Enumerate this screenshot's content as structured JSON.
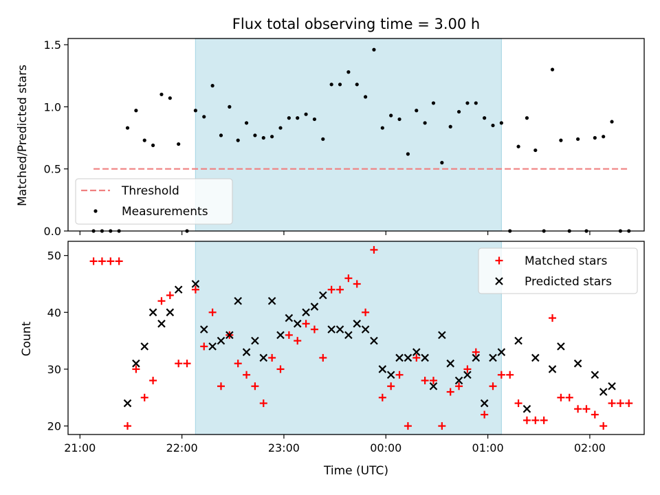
{
  "chart_data": [
    {
      "type": "scatter",
      "title": "Flux total observing time = 3.00 h",
      "ylabel": "Matched/Predicted stars",
      "xlabel": "",
      "ylim": [
        0,
        1.55
      ],
      "yticks": [
        "0.0",
        "0.5",
        "1.0",
        "1.5"
      ],
      "grid": false,
      "legend_position": "lower-left",
      "threshold": {
        "name": "Threshold",
        "value": 0.5,
        "color": "#f08080"
      },
      "series": [
        {
          "name": "Measurements",
          "color": "#000000",
          "points": [
            [
              "21:08",
              0.0
            ],
            [
              "21:13",
              0.0
            ],
            [
              "21:18",
              0.0
            ],
            [
              "21:23",
              0.0
            ],
            [
              "21:28",
              0.83
            ],
            [
              "21:33",
              0.97
            ],
            [
              "21:38",
              0.73
            ],
            [
              "21:43",
              0.69
            ],
            [
              "21:48",
              1.1
            ],
            [
              "21:53",
              1.07
            ],
            [
              "21:58",
              0.7
            ],
            [
              "22:03",
              0.0
            ],
            [
              "22:08",
              0.97
            ],
            [
              "22:13",
              0.92
            ],
            [
              "22:18",
              1.17
            ],
            [
              "22:23",
              0.77
            ],
            [
              "22:28",
              1.0
            ],
            [
              "22:33",
              0.73
            ],
            [
              "22:38",
              0.87
            ],
            [
              "22:43",
              0.77
            ],
            [
              "22:48",
              0.75
            ],
            [
              "22:53",
              0.76
            ],
            [
              "22:58",
              0.83
            ],
            [
              "23:03",
              0.91
            ],
            [
              "23:08",
              0.91
            ],
            [
              "23:13",
              0.94
            ],
            [
              "23:18",
              0.9
            ],
            [
              "23:23",
              0.74
            ],
            [
              "23:28",
              1.18
            ],
            [
              "23:33",
              1.18
            ],
            [
              "23:38",
              1.28
            ],
            [
              "23:43",
              1.18
            ],
            [
              "23:48",
              1.08
            ],
            [
              "23:53",
              1.46
            ],
            [
              "23:58",
              0.83
            ],
            [
              "00:03",
              0.93
            ],
            [
              "00:08",
              0.9
            ],
            [
              "00:13",
              0.62
            ],
            [
              "00:18",
              0.97
            ],
            [
              "00:23",
              0.87
            ],
            [
              "00:28",
              1.03
            ],
            [
              "00:33",
              0.55
            ],
            [
              "00:38",
              0.84
            ],
            [
              "00:43",
              0.96
            ],
            [
              "00:48",
              1.03
            ],
            [
              "00:53",
              1.03
            ],
            [
              "00:58",
              0.91
            ],
            [
              "01:03",
              0.85
            ],
            [
              "01:08",
              0.87
            ],
            [
              "01:13",
              0.0
            ],
            [
              "01:18",
              0.68
            ],
            [
              "01:23",
              0.91
            ],
            [
              "01:28",
              0.65
            ],
            [
              "01:33",
              0.0
            ],
            [
              "01:38",
              1.3
            ],
            [
              "01:43",
              0.73
            ],
            [
              "01:48",
              0.0
            ],
            [
              "01:53",
              0.74
            ],
            [
              "01:58",
              0.0
            ],
            [
              "02:03",
              0.75
            ],
            [
              "02:08",
              0.76
            ],
            [
              "02:13",
              0.88
            ],
            [
              "02:18",
              0.0
            ],
            [
              "02:23",
              0.0
            ]
          ]
        }
      ]
    },
    {
      "type": "scatter",
      "title": "",
      "ylabel": "Count",
      "xlabel": "Time (UTC)",
      "ylim": [
        18.5,
        52.5
      ],
      "yticks": [
        "20",
        "30",
        "40",
        "50"
      ],
      "grid": false,
      "legend_position": "top-right",
      "series": [
        {
          "name": "Matched stars",
          "color": "#ff0000",
          "marker": "plus",
          "points": [
            [
              "21:08",
              49
            ],
            [
              "21:13",
              49
            ],
            [
              "21:18",
              49
            ],
            [
              "21:23",
              49
            ],
            [
              "21:28",
              20
            ],
            [
              "21:33",
              30
            ],
            [
              "21:38",
              25
            ],
            [
              "21:43",
              28
            ],
            [
              "21:48",
              42
            ],
            [
              "21:53",
              43
            ],
            [
              "21:58",
              31
            ],
            [
              "22:03",
              31
            ],
            [
              "22:08",
              44
            ],
            [
              "22:13",
              34
            ],
            [
              "22:18",
              40
            ],
            [
              "22:23",
              27
            ],
            [
              "22:28",
              36
            ],
            [
              "22:33",
              31
            ],
            [
              "22:38",
              29
            ],
            [
              "22:43",
              27
            ],
            [
              "22:48",
              24
            ],
            [
              "22:53",
              32
            ],
            [
              "22:58",
              30
            ],
            [
              "23:03",
              36
            ],
            [
              "23:08",
              35
            ],
            [
              "23:13",
              38
            ],
            [
              "23:18",
              37
            ],
            [
              "23:23",
              32
            ],
            [
              "23:28",
              44
            ],
            [
              "23:33",
              44
            ],
            [
              "23:38",
              46
            ],
            [
              "23:43",
              45
            ],
            [
              "23:48",
              40
            ],
            [
              "23:53",
              51
            ],
            [
              "23:58",
              25
            ],
            [
              "00:03",
              27
            ],
            [
              "00:08",
              29
            ],
            [
              "00:13",
              20
            ],
            [
              "00:18",
              32
            ],
            [
              "00:23",
              28
            ],
            [
              "00:28",
              28
            ],
            [
              "00:33",
              20
            ],
            [
              "00:38",
              26
            ],
            [
              "00:43",
              27
            ],
            [
              "00:48",
              30
            ],
            [
              "00:53",
              33
            ],
            [
              "00:58",
              22
            ],
            [
              "01:03",
              27
            ],
            [
              "01:08",
              29
            ],
            [
              "01:13",
              29
            ],
            [
              "01:18",
              24
            ],
            [
              "01:23",
              21
            ],
            [
              "01:28",
              21
            ],
            [
              "01:33",
              21
            ],
            [
              "01:38",
              39
            ],
            [
              "01:43",
              25
            ],
            [
              "01:48",
              25
            ],
            [
              "01:53",
              23
            ],
            [
              "01:58",
              23
            ],
            [
              "02:03",
              22
            ],
            [
              "02:08",
              20
            ],
            [
              "02:13",
              24
            ],
            [
              "02:18",
              24
            ],
            [
              "02:23",
              24
            ]
          ]
        },
        {
          "name": "Predicted stars",
          "color": "#000000",
          "marker": "x",
          "points": [
            [
              "21:28",
              24
            ],
            [
              "21:33",
              31
            ],
            [
              "21:38",
              34
            ],
            [
              "21:43",
              40
            ],
            [
              "21:48",
              38
            ],
            [
              "21:53",
              40
            ],
            [
              "21:58",
              44
            ],
            [
              "22:08",
              45
            ],
            [
              "22:13",
              37
            ],
            [
              "22:18",
              34
            ],
            [
              "22:23",
              35
            ],
            [
              "22:28",
              36
            ],
            [
              "22:33",
              42
            ],
            [
              "22:38",
              33
            ],
            [
              "22:43",
              35
            ],
            [
              "22:48",
              32
            ],
            [
              "22:53",
              42
            ],
            [
              "22:58",
              36
            ],
            [
              "23:03",
              39
            ],
            [
              "23:08",
              38
            ],
            [
              "23:13",
              40
            ],
            [
              "23:18",
              41
            ],
            [
              "23:23",
              43
            ],
            [
              "23:28",
              37
            ],
            [
              "23:33",
              37
            ],
            [
              "23:38",
              36
            ],
            [
              "23:43",
              38
            ],
            [
              "23:48",
              37
            ],
            [
              "23:53",
              35
            ],
            [
              "23:58",
              30
            ],
            [
              "00:03",
              29
            ],
            [
              "00:08",
              32
            ],
            [
              "00:13",
              32
            ],
            [
              "00:18",
              33
            ],
            [
              "00:23",
              32
            ],
            [
              "00:28",
              27
            ],
            [
              "00:33",
              36
            ],
            [
              "00:38",
              31
            ],
            [
              "00:43",
              28
            ],
            [
              "00:48",
              29
            ],
            [
              "00:53",
              32
            ],
            [
              "00:58",
              24
            ],
            [
              "01:03",
              32
            ],
            [
              "01:08",
              33
            ],
            [
              "01:18",
              35
            ],
            [
              "01:23",
              23
            ],
            [
              "01:28",
              32
            ],
            [
              "01:38",
              30
            ],
            [
              "01:43",
              34
            ],
            [
              "01:53",
              31
            ],
            [
              "02:03",
              29
            ],
            [
              "02:08",
              26
            ],
            [
              "02:13",
              27
            ]
          ]
        }
      ]
    }
  ],
  "shared_x": {
    "type": "time",
    "xlim": [
      "20:53",
      "02:32"
    ],
    "ticks": [
      "21:00",
      "22:00",
      "23:00",
      "00:00",
      "01:00",
      "02:00"
    ]
  },
  "observing_window": {
    "start": "22:08",
    "end": "01:08",
    "color": "#add8e6"
  }
}
